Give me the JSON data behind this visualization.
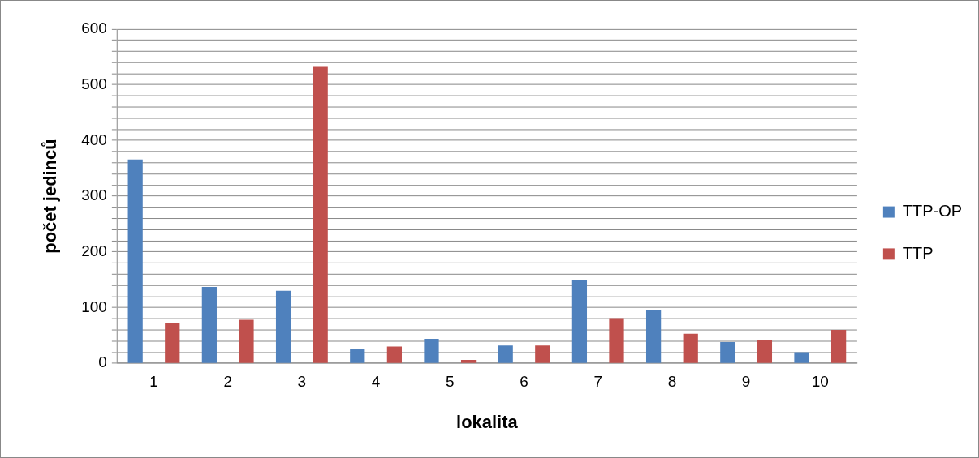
{
  "chart_data": {
    "type": "bar",
    "xlabel": "lokalita",
    "ylabel": "počet jedinců",
    "categories": [
      "1",
      "2",
      "3",
      "4",
      "5",
      "6",
      "7",
      "8",
      "9",
      "10"
    ],
    "series": [
      {
        "name": "TTP-OP",
        "color": "#4f81bd",
        "values": [
          366,
          137,
          130,
          26,
          44,
          32,
          149,
          96,
          38,
          20
        ]
      },
      {
        "name": "TTP",
        "color": "#c0504d",
        "values": [
          72,
          78,
          532,
          30,
          6,
          32,
          81,
          53,
          42,
          60
        ]
      }
    ],
    "ylim": [
      0,
      600
    ],
    "yticks": [
      0,
      {
        "value": 20,
        "label": null
      },
      {
        "value": 40,
        "label": null
      },
      {
        "value": 60,
        "label": null
      },
      {
        "value": 80,
        "label": null
      },
      100,
      {
        "value": 120,
        "label": null
      },
      {
        "value": 140,
        "label": null
      },
      {
        "value": 160,
        "label": null
      },
      {
        "value": 180,
        "label": null
      },
      200,
      {
        "value": 220,
        "label": null
      },
      {
        "value": 240,
        "label": null
      },
      {
        "value": 260,
        "label": null
      },
      {
        "value": 280,
        "label": null
      },
      300,
      {
        "value": 320,
        "label": null
      },
      {
        "value": 340,
        "label": null
      },
      {
        "value": 360,
        "label": null
      },
      {
        "value": 380,
        "label": null
      },
      400,
      {
        "value": 420,
        "label": null
      },
      {
        "value": 440,
        "label": null
      },
      {
        "value": 460,
        "label": null
      },
      {
        "value": 480,
        "label": null
      },
      500,
      {
        "value": 520,
        "label": null
      },
      {
        "value": 540,
        "label": null
      },
      {
        "value": 560,
        "label": null
      },
      {
        "value": 580,
        "label": null
      },
      600
    ],
    "grid": "y",
    "legend": "right"
  }
}
